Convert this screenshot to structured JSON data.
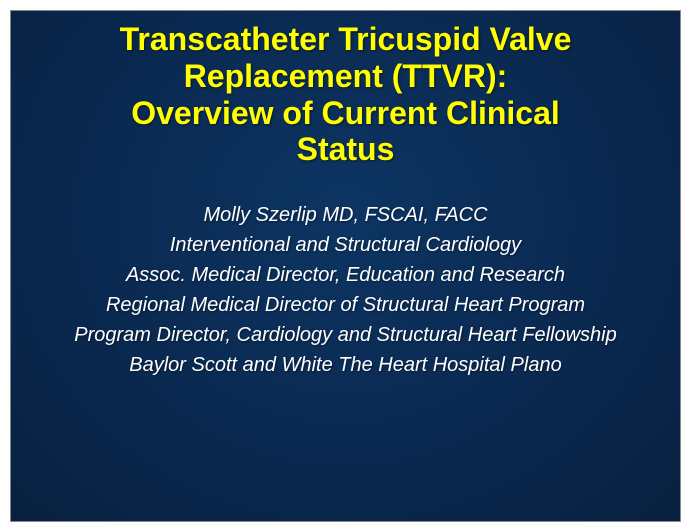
{
  "slide": {
    "background_gradient": {
      "top": "#0a2a52",
      "middle": "#0d3563",
      "bottom": "#082040"
    },
    "title": {
      "color": "#ffff00",
      "fontsize": 32,
      "fontweight": "bold",
      "lines": [
        "Transcatheter Tricuspid Valve",
        "Replacement (TTVR):",
        "Overview of Current Clinical",
        "Status"
      ]
    },
    "credits": {
      "color": "#ffffff",
      "fontsize": 20,
      "fontstyle": "italic",
      "lines": [
        "Molly Szerlip MD, FSCAI, FACC",
        "Interventional and Structural Cardiology",
        "Assoc. Medical Director, Education and Research",
        "Regional Medical Director of Structural Heart Program",
        "Program Director, Cardiology and Structural Heart Fellowship",
        "Baylor Scott and White The Heart Hospital Plano"
      ]
    }
  }
}
